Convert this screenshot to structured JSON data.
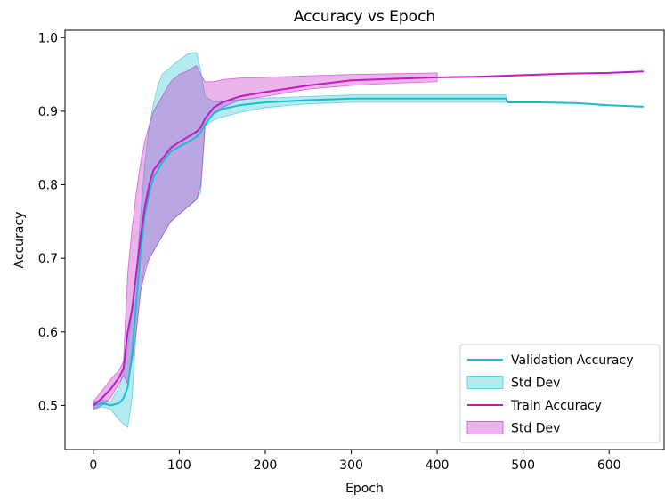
{
  "chart_data": {
    "type": "line",
    "title": "Accuracy vs Epoch",
    "xlabel": "Epoch",
    "ylabel": "Accuracy",
    "xlim": [
      -33,
      664
    ],
    "ylim": [
      0.44,
      1.01
    ],
    "xticks": [
      0,
      100,
      200,
      300,
      400,
      500,
      600
    ],
    "yticks": [
      0.5,
      0.6,
      0.7,
      0.8,
      0.9,
      1.0
    ],
    "xtick_labels": [
      "0",
      "100",
      "200",
      "300",
      "400",
      "500",
      "600"
    ],
    "ytick_labels": [
      "0.5",
      "0.6",
      "0.7",
      "0.8",
      "0.9",
      "1.0"
    ],
    "grid": false,
    "legend_position": "lower-right",
    "legend": [
      {
        "label": "Validation Accuracy",
        "kind": "line",
        "color": "#17becf"
      },
      {
        "label": "Std Dev",
        "kind": "band",
        "color": "#17becf"
      },
      {
        "label": "Train Accuracy",
        "kind": "line",
        "color": "#c21ac2"
      },
      {
        "label": "Std Dev",
        "kind": "band",
        "color": "#c21ac2"
      }
    ],
    "series": [
      {
        "name": "Validation Accuracy",
        "color": "#17becf",
        "band_color": "#17becf",
        "band_opacity": 0.32,
        "x": [
          0,
          10,
          20,
          30,
          35,
          40,
          45,
          50,
          55,
          60,
          65,
          70,
          75,
          80,
          90,
          100,
          110,
          120,
          125,
          130,
          140,
          150,
          170,
          200,
          250,
          300,
          350,
          400,
          450,
          480,
          482,
          520,
          560,
          600,
          640
        ],
        "y": [
          0.5,
          0.503,
          0.5,
          0.503,
          0.51,
          0.525,
          0.57,
          0.64,
          0.71,
          0.76,
          0.79,
          0.81,
          0.82,
          0.83,
          0.845,
          0.852,
          0.858,
          0.865,
          0.872,
          0.882,
          0.897,
          0.903,
          0.908,
          0.912,
          0.915,
          0.917,
          0.917,
          0.917,
          0.917,
          0.917,
          0.912,
          0.912,
          0.911,
          0.908,
          0.906
        ],
        "lower": [
          0.495,
          0.498,
          0.495,
          0.48,
          0.475,
          0.47,
          0.51,
          0.6,
          0.655,
          0.69,
          0.7,
          0.71,
          0.72,
          0.73,
          0.75,
          0.76,
          0.77,
          0.78,
          0.79,
          0.88,
          0.888,
          0.892,
          0.898,
          0.905,
          0.91,
          0.912,
          0.912,
          0.912,
          0.912,
          0.912,
          null,
          null,
          null,
          null,
          null
        ],
        "upper": [
          0.505,
          0.508,
          0.505,
          0.525,
          0.545,
          0.58,
          0.63,
          0.68,
          0.76,
          0.83,
          0.88,
          0.91,
          0.935,
          0.95,
          0.96,
          0.97,
          0.978,
          0.98,
          0.955,
          0.92,
          0.913,
          0.913,
          0.916,
          0.918,
          0.92,
          0.922,
          0.922,
          0.922,
          0.922,
          0.922,
          null,
          null,
          null,
          null,
          null
        ]
      },
      {
        "name": "Train Accuracy",
        "color": "#c21ac2",
        "band_color": "#c21ac2",
        "band_opacity": 0.32,
        "x": [
          0,
          10,
          20,
          30,
          35,
          40,
          45,
          50,
          55,
          60,
          65,
          70,
          80,
          90,
          100,
          110,
          120,
          125,
          130,
          140,
          150,
          170,
          200,
          250,
          300,
          350,
          400,
          450,
          500,
          550,
          600,
          640
        ],
        "y": [
          0.5,
          0.51,
          0.522,
          0.538,
          0.55,
          0.6,
          0.63,
          0.68,
          0.73,
          0.77,
          0.8,
          0.82,
          0.835,
          0.85,
          0.858,
          0.865,
          0.872,
          0.878,
          0.89,
          0.905,
          0.912,
          0.92,
          0.926,
          0.935,
          0.942,
          0.944,
          0.946,
          0.947,
          0.949,
          0.951,
          0.952,
          0.954
        ],
        "lower": [
          0.495,
          0.5,
          0.51,
          0.53,
          0.54,
          0.53,
          0.56,
          0.6,
          0.655,
          0.68,
          0.7,
          0.71,
          0.73,
          0.75,
          0.76,
          0.77,
          0.78,
          0.8,
          0.88,
          0.898,
          0.905,
          0.915,
          0.92,
          0.93,
          0.935,
          0.938,
          0.94,
          null,
          null,
          null,
          null,
          null
        ],
        "upper": [
          0.505,
          0.52,
          0.535,
          0.548,
          0.56,
          0.68,
          0.74,
          0.79,
          0.83,
          0.86,
          0.88,
          0.9,
          0.92,
          0.94,
          0.95,
          0.955,
          0.962,
          0.95,
          0.94,
          0.94,
          0.943,
          0.945,
          0.946,
          0.948,
          0.95,
          0.951,
          0.952,
          null,
          null,
          null,
          null,
          null
        ]
      }
    ]
  }
}
